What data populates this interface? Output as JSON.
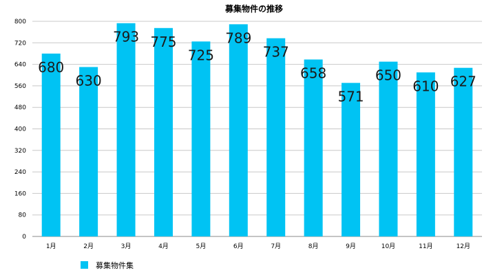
{
  "chart_data": {
    "type": "bar",
    "title": "募集物件の推移",
    "categories": [
      "1月",
      "2月",
      "3月",
      "4月",
      "5月",
      "6月",
      "7月",
      "8月",
      "9月",
      "10月",
      "11月",
      "12月"
    ],
    "series": [
      {
        "name": "募集物件集",
        "values": [
          680,
          630,
          793,
          775,
          725,
          789,
          737,
          658,
          571,
          650,
          610,
          627
        ]
      }
    ],
    "ylim": [
      0,
      800
    ],
    "yticks": [
      0,
      80,
      160,
      240,
      320,
      400,
      480,
      560,
      640,
      720,
      800
    ],
    "xlabel": "",
    "ylabel": "",
    "grid": true,
    "data_labels": true,
    "legend_position": "bottom-left",
    "bar_color": "#00c3f3",
    "grid_color": "#c8c8c8"
  }
}
